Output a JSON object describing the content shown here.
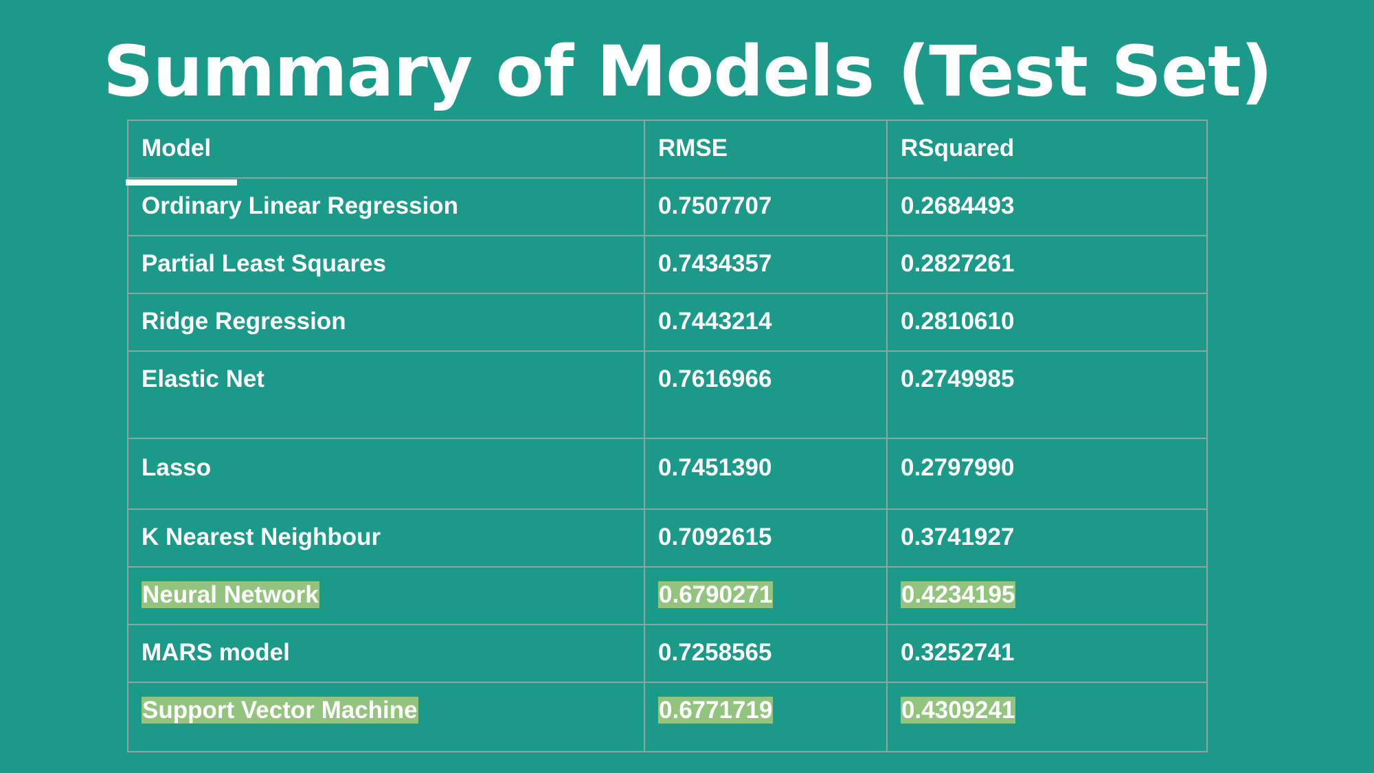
{
  "slide": {
    "title": "Summary of Models (Test Set)",
    "background_color": "#1b9a89",
    "highlight_color": "#93c47d"
  },
  "table": {
    "headers": [
      "Model",
      "RMSE",
      "RSquared"
    ],
    "rows": [
      {
        "model": "Ordinary Linear Regression",
        "rmse": "0.7507707",
        "rsquared": "0.2684493",
        "highlighted": false
      },
      {
        "model": "Partial Least Squares",
        "rmse": "0.7434357",
        "rsquared": "0.2827261",
        "highlighted": false
      },
      {
        "model": "Ridge Regression",
        "rmse": "0.7443214",
        "rsquared": "0.2810610",
        "highlighted": false
      },
      {
        "model": "Elastic Net",
        "rmse": "0.7616966",
        "rsquared": "0.2749985",
        "highlighted": false
      },
      {
        "model": "Lasso",
        "rmse": "0.7451390",
        "rsquared": "0.2797990",
        "highlighted": false
      },
      {
        "model": "K Nearest Neighbour",
        "rmse": "0.7092615",
        "rsquared": "0.3741927",
        "highlighted": false
      },
      {
        "model": "Neural Network",
        "rmse": "0.6790271",
        "rsquared": "0.4234195",
        "highlighted": true
      },
      {
        "model": "MARS model",
        "rmse": "0.7258565",
        "rsquared": "0.3252741",
        "highlighted": false
      },
      {
        "model": "Support Vector Machine",
        "rmse": "0.6771719",
        "rsquared": "0.4309241",
        "highlighted": true
      }
    ]
  }
}
